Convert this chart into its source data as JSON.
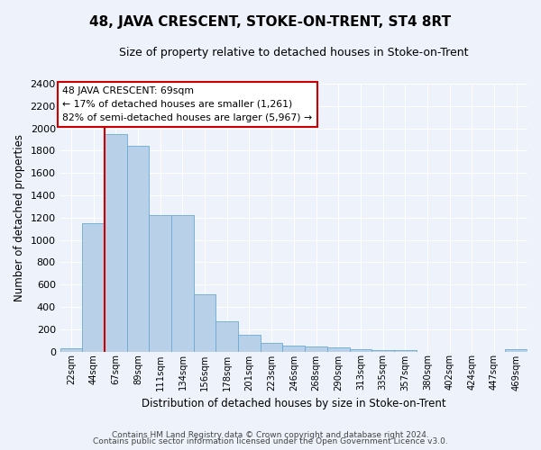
{
  "title": "48, JAVA CRESCENT, STOKE-ON-TRENT, ST4 8RT",
  "subtitle": "Size of property relative to detached houses in Stoke-on-Trent",
  "xlabel": "Distribution of detached houses by size in Stoke-on-Trent",
  "ylabel": "Number of detached properties",
  "bin_labels": [
    "22sqm",
    "44sqm",
    "67sqm",
    "89sqm",
    "111sqm",
    "134sqm",
    "156sqm",
    "178sqm",
    "201sqm",
    "223sqm",
    "246sqm",
    "268sqm",
    "290sqm",
    "313sqm",
    "335sqm",
    "357sqm",
    "380sqm",
    "402sqm",
    "424sqm",
    "447sqm",
    "469sqm"
  ],
  "bar_values": [
    30,
    1150,
    1950,
    1840,
    1220,
    1220,
    510,
    270,
    150,
    80,
    50,
    45,
    40,
    20,
    15,
    15,
    0,
    0,
    0,
    0,
    20
  ],
  "bar_color": "#b8d0e8",
  "bar_edge_color": "#6aaad4",
  "annotation_line1": "48 JAVA CRESCENT: 69sqm",
  "annotation_line2": "← 17% of detached houses are smaller (1,261)",
  "annotation_line3": "82% of semi-detached houses are larger (5,967) →",
  "annotation_box_color": "#ffffff",
  "annotation_box_edge": "#cc0000",
  "red_line_color": "#cc0000",
  "ylim": [
    0,
    2400
  ],
  "yticks": [
    0,
    200,
    400,
    600,
    800,
    1000,
    1200,
    1400,
    1600,
    1800,
    2000,
    2200,
    2400
  ],
  "footer1": "Contains HM Land Registry data © Crown copyright and database right 2024.",
  "footer2": "Contains public sector information licensed under the Open Government Licence v3.0.",
  "bg_color": "#edf2fb",
  "grid_color": "#ffffff",
  "title_fontsize": 11,
  "subtitle_fontsize": 9
}
